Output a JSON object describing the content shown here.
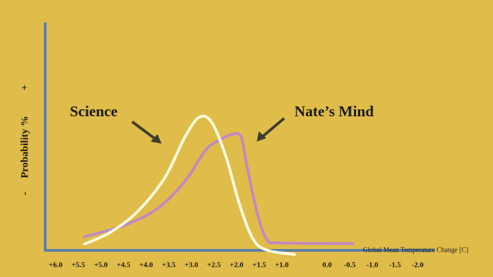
{
  "chart_data": {
    "type": "line",
    "x_label": "Global Mean Temperature Change [C]",
    "y_label": "Probability %",
    "y_low_label": "-",
    "y_high_label": "+",
    "annotations": [
      "Science",
      "Nate’s Mind"
    ],
    "xlim": [
      6.23,
      -2.38
    ],
    "xticks": [
      {
        "value": 6,
        "label": "+6.0"
      },
      {
        "value": 5.5,
        "label": "+5.5"
      },
      {
        "value": 5,
        "label": "+5.0"
      },
      {
        "value": 4.5,
        "label": "+4.5"
      },
      {
        "value": 4,
        "label": "+4.0"
      },
      {
        "value": 3.5,
        "label": "+3.5"
      },
      {
        "value": 3,
        "label": "+3.0"
      },
      {
        "value": 2.5,
        "label": "+2.5"
      },
      {
        "value": 2,
        "label": "+2.0"
      },
      {
        "value": 1.5,
        "label": "+1.5"
      },
      {
        "value": 1,
        "label": "+1.0"
      },
      {
        "value": 0,
        "label": "0.0"
      },
      {
        "value": -0.5,
        "label": "-0.5"
      },
      {
        "value": -1,
        "label": "-1.0"
      },
      {
        "value": -1.5,
        "label": "-1.5"
      },
      {
        "value": -2,
        "label": "-2.0"
      }
    ],
    "ylim": [
      0,
      100
    ],
    "series": [
      {
        "color": "#fffbe0",
        "x": [
          5.36,
          4.8,
          4.2,
          3.59,
          3.14,
          2.82,
          2.54,
          2.23,
          1.93,
          1.63,
          1.32,
          0.72
        ],
        "values": [
          4.5,
          9.5,
          18.4,
          33.2,
          51.0,
          59.6,
          57.0,
          42.1,
          21.4,
          6.5,
          1.8,
          0
        ]
      },
      {
        "color": "#c08ac0",
        "x": [
          5.36,
          4.5,
          3.75,
          3.14,
          2.69,
          2.38,
          2.08,
          1.9,
          1.78,
          1.55,
          1.33,
          1.02,
          -0.57
        ],
        "values": [
          7.7,
          12.5,
          19.9,
          31.8,
          45.1,
          49.6,
          52.2,
          51.0,
          39.2,
          18.4,
          6.5,
          5.0,
          4.7
        ]
      }
    ]
  }
}
